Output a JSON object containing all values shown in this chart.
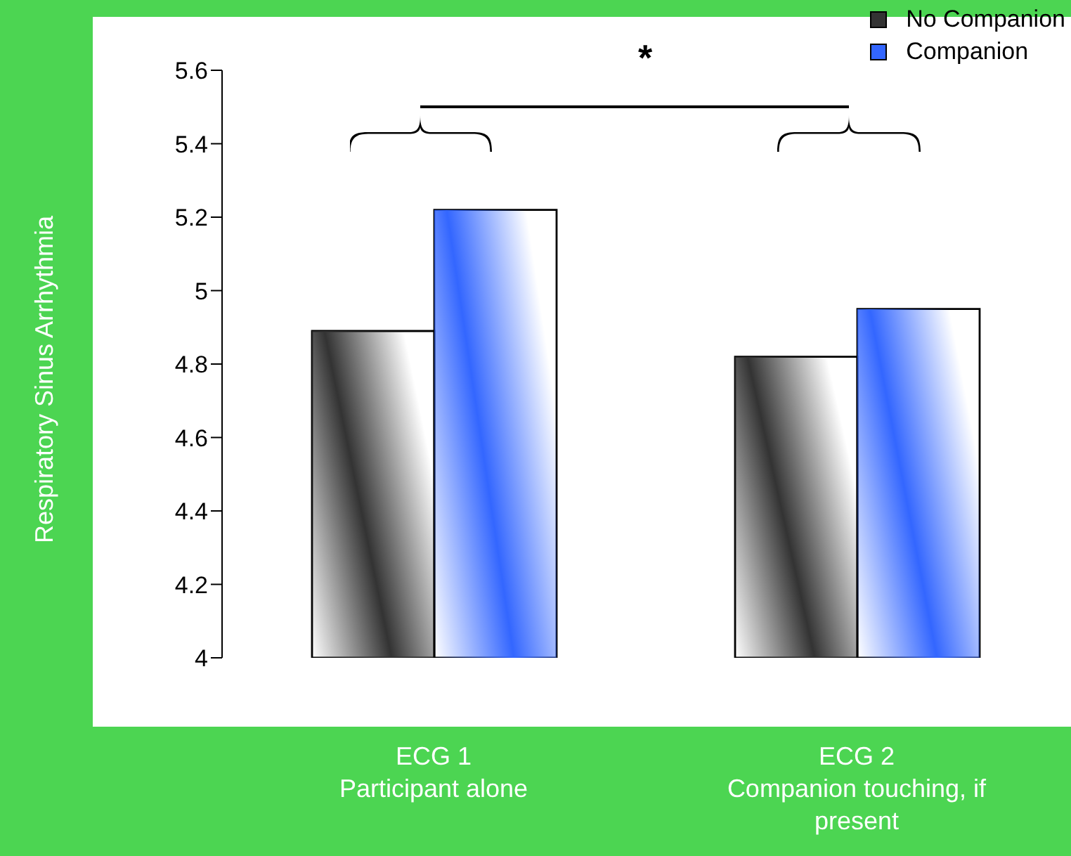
{
  "chart_data": {
    "type": "bar",
    "ylabel": "Respiratory Sinus Arrhythmia",
    "categories": [
      "ECG 1\nParticipant alone",
      "ECG 2\nCompanion touching, if present"
    ],
    "series": [
      {
        "name": "No Companion",
        "color": "#333333",
        "values": [
          4.89,
          4.82
        ]
      },
      {
        "name": "Companion",
        "color": "#3366ff",
        "values": [
          5.22,
          4.95
        ]
      }
    ],
    "ylim": [
      4,
      5.6
    ],
    "yticks": [
      4,
      4.2,
      4.4,
      4.6,
      4.8,
      5,
      5.2,
      5.4,
      5.6
    ],
    "legend": "top right",
    "grid": false,
    "annotations": [
      "*"
    ]
  }
}
